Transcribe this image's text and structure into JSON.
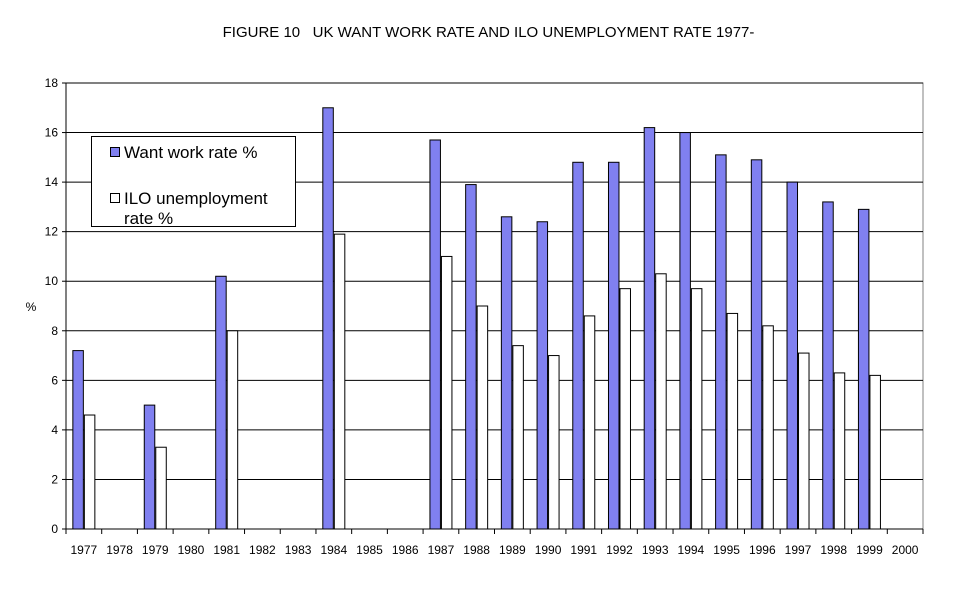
{
  "chart_data": {
    "type": "bar",
    "title": "FIGURE 10   UK WANT WORK RATE AND ILO UNEMPLOYMENT RATE 1977-",
    "ylabel": "%",
    "xlabel": "",
    "ylim": [
      0,
      18
    ],
    "yticks": [
      0,
      2,
      4,
      6,
      8,
      10,
      12,
      14,
      16,
      18
    ],
    "grid": true,
    "legend_position": "top-left",
    "categories": [
      "1977",
      "1978",
      "1979",
      "1980",
      "1981",
      "1982",
      "1983",
      "1984",
      "1985",
      "1986",
      "1987",
      "1988",
      "1989",
      "1990",
      "1991",
      "1992",
      "1993",
      "1994",
      "1995",
      "1996",
      "1997",
      "1998",
      "1999",
      "2000"
    ],
    "series": [
      {
        "name": "Want work rate %",
        "color": "#8080f0",
        "values": [
          7.2,
          null,
          5.0,
          null,
          10.2,
          null,
          null,
          17.0,
          null,
          null,
          15.7,
          13.9,
          12.6,
          12.4,
          14.8,
          14.8,
          16.2,
          16.0,
          15.1,
          14.9,
          14.0,
          13.2,
          12.9,
          null
        ]
      },
      {
        "name": "ILO unemployment rate %",
        "color": "#ffffff",
        "values": [
          4.6,
          null,
          3.3,
          null,
          8.0,
          null,
          null,
          11.9,
          null,
          null,
          11.0,
          9.0,
          7.4,
          7.0,
          8.6,
          9.7,
          10.3,
          9.7,
          8.7,
          8.2,
          7.1,
          6.3,
          6.2,
          null
        ]
      }
    ]
  }
}
